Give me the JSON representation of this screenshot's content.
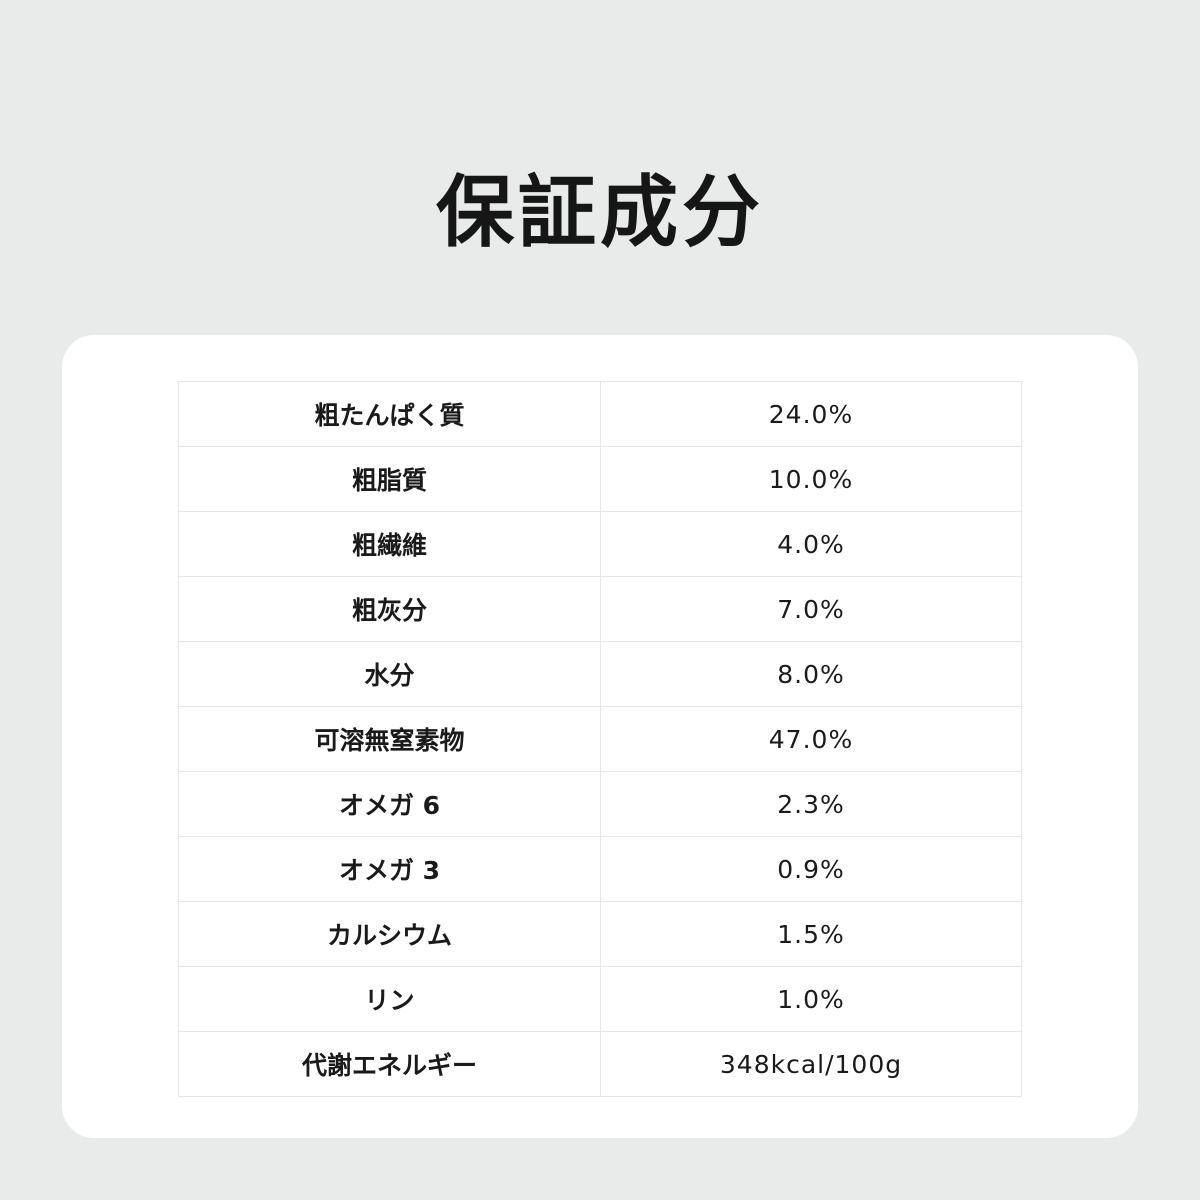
{
  "title": "保証成分",
  "rows": [
    {
      "label": "粗たんぱく質",
      "value": "24.0%"
    },
    {
      "label": "粗脂質",
      "value": "10.0%"
    },
    {
      "label": "粗繊維",
      "value": "4.0%"
    },
    {
      "label": "粗灰分",
      "value": "7.0%"
    },
    {
      "label": "水分",
      "value": "8.0%"
    },
    {
      "label": "可溶無窒素物",
      "value": "47.0%"
    },
    {
      "label": "オメガ 6",
      "value": "2.3%"
    },
    {
      "label": "オメガ 3",
      "value": "0.9%"
    },
    {
      "label": "カルシウム",
      "value": "1.5%"
    },
    {
      "label": "リン",
      "value": "1.0%"
    },
    {
      "label": "代謝エネルギー",
      "value": "348kcal/100g"
    }
  ]
}
